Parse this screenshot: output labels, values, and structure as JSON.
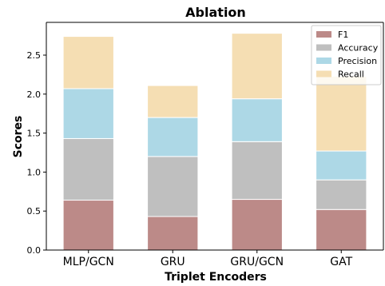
{
  "chart_data": {
    "type": "bar",
    "stacked": true,
    "title": "Ablation",
    "xlabel": "Triplet Encoders",
    "ylabel": "Scores",
    "categories": [
      "MLP/GCN",
      "GRU",
      "GRU/GCN",
      "GAT"
    ],
    "series": [
      {
        "name": "F1",
        "color": "#bc8a88",
        "values": [
          0.64,
          0.43,
          0.65,
          0.52
        ]
      },
      {
        "name": "Accuracy",
        "color": "#bfbfbf",
        "values": [
          0.79,
          0.77,
          0.74,
          0.38
        ]
      },
      {
        "name": "Precision",
        "color": "#add8e6",
        "values": [
          0.64,
          0.5,
          0.55,
          0.37
        ]
      },
      {
        "name": "Recall",
        "color": "#f5deb3",
        "values": [
          0.67,
          0.41,
          0.84,
          0.96
        ]
      }
    ],
    "ylim": [
      0,
      2.92
    ],
    "yticks": [
      "0.0",
      "0.5",
      "1.0",
      "1.5",
      "2.0",
      "2.5"
    ],
    "ytick_values": [
      0,
      0.5,
      1.0,
      1.5,
      2.0,
      2.5
    ],
    "legend_position": "top-right",
    "grid": false
  }
}
